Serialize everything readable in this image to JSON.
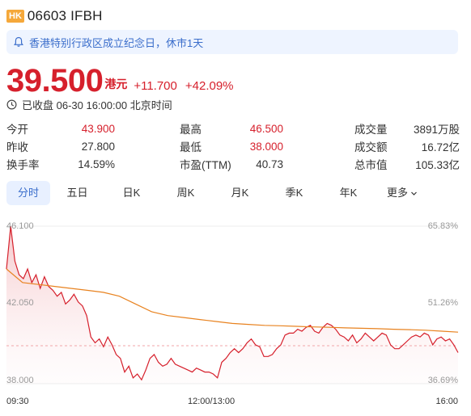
{
  "header": {
    "market_badge": "HK",
    "code_name": "06603 IFBH"
  },
  "notice": {
    "text": "香港特别行政区成立纪念日，休市1天",
    "icon": "bell-icon"
  },
  "quote": {
    "price": "39.500",
    "currency": "港元",
    "change": "+11.700",
    "change_pct": "+42.09%",
    "status": "已收盘 06-30 16:00:00 北京时间"
  },
  "stats": [
    [
      {
        "label": "今开",
        "value": "43.900",
        "color": "red"
      },
      {
        "label": "最高",
        "value": "46.500",
        "color": "red"
      },
      {
        "label": "成交量",
        "value": "3891万股",
        "color": "dark"
      }
    ],
    [
      {
        "label": "昨收",
        "value": "27.800",
        "color": "dark"
      },
      {
        "label": "最低",
        "value": "38.000",
        "color": "red"
      },
      {
        "label": "成交额",
        "value": "16.72亿",
        "color": "dark"
      }
    ],
    [
      {
        "label": "换手率",
        "value": "14.59%",
        "color": "dark"
      },
      {
        "label": "市盈(TTM)",
        "value": "40.73",
        "color": "dark"
      },
      {
        "label": "总市值",
        "value": "105.33亿",
        "color": "dark"
      }
    ]
  ],
  "tabs": [
    "分时",
    "五日",
    "日K",
    "周K",
    "月K",
    "季K",
    "年K"
  ],
  "tabs_more": "更多",
  "colors": {
    "up": "#d6202c",
    "avg_line": "#e8821f",
    "accent": "#3b6ecb"
  },
  "chart_data": {
    "type": "line",
    "y_left_ticks": [
      "46.100",
      "42.050",
      "38.000"
    ],
    "y_right_ticks": [
      "65.83%",
      "51.26%",
      "36.69%"
    ],
    "x_ticks": [
      "09:30",
      "12:00/13:00",
      "16:00"
    ],
    "ylim": [
      38.0,
      46.1
    ],
    "prev_close_ref": 42.05,
    "series": [
      {
        "values": [
          43.9,
          46.1,
          44.3,
          43.6,
          43.4,
          43.9,
          43.2,
          43.6,
          42.9,
          43.5,
          43.0,
          42.8,
          42.5,
          42.7,
          42.1,
          42.3,
          42.6,
          42.2,
          42.0,
          41.5,
          40.4,
          40.1,
          40.3,
          39.9,
          40.4,
          40.0,
          39.5,
          39.3,
          38.6,
          38.9,
          38.3,
          38.5,
          38.2,
          38.7,
          39.3,
          39.5,
          39.1,
          38.9,
          39.0,
          39.3,
          39.0,
          38.9,
          38.8,
          38.7,
          38.6,
          38.8,
          38.7,
          38.6,
          38.6,
          38.5,
          38.3,
          39.1,
          39.3,
          39.6,
          39.8,
          39.6,
          39.8,
          40.1,
          40.3,
          40.0,
          39.9,
          39.4,
          39.4,
          39.5,
          39.8,
          40.0,
          40.5,
          40.6,
          40.6,
          40.8,
          40.7,
          40.9,
          41.0,
          40.7,
          40.6,
          40.9,
          41.1,
          41.0,
          40.8,
          40.5,
          40.4,
          40.2,
          40.5,
          40.1,
          40.3,
          40.6,
          40.4,
          40.2,
          40.4,
          40.6,
          40.5,
          40.0,
          39.8,
          39.8,
          40.0,
          40.2,
          40.4,
          40.5,
          40.4,
          40.6,
          40.5,
          40.0,
          40.3,
          40.4,
          40.2,
          40.3,
          40.0,
          39.6
        ]
      },
      {
        "values": [
          43.9,
          43.2,
          43.1,
          43.0,
          42.9,
          42.8,
          42.7,
          42.5,
          42.1,
          41.7,
          41.5,
          41.4,
          41.3,
          41.2,
          41.1,
          41.05,
          41.0,
          40.98,
          40.95,
          40.92,
          40.9,
          40.87,
          40.85,
          40.83,
          40.8,
          40.78,
          40.75,
          40.7,
          40.65
        ]
      }
    ]
  }
}
